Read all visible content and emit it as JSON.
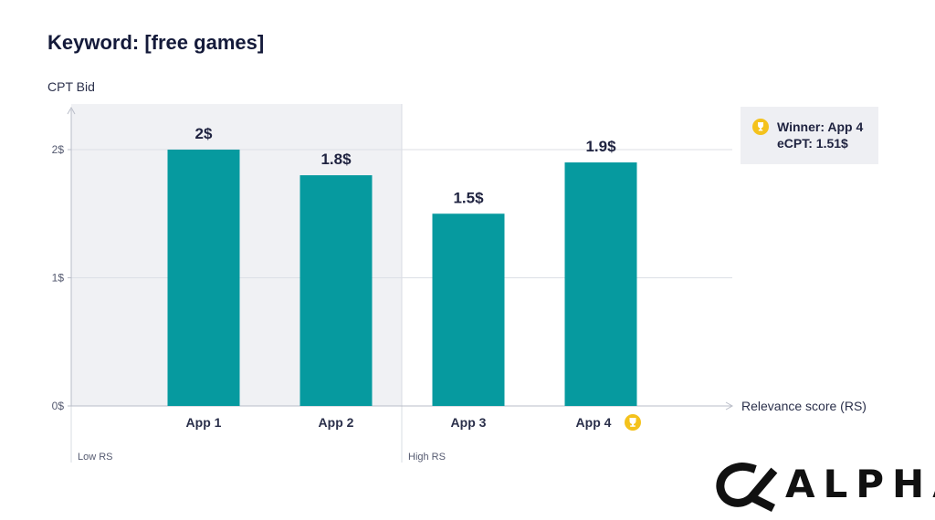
{
  "chart_data": {
    "type": "bar",
    "title": "Keyword: [free games]",
    "ylabel": "CPT Bid",
    "xlabel": "Relevance score (RS)",
    "categories": [
      "App 1",
      "App 2",
      "App 3",
      "App 4"
    ],
    "values": [
      2.0,
      1.8,
      1.5,
      1.9
    ],
    "value_labels": [
      "2$",
      "1.8$",
      "1.5$",
      "1.9$"
    ],
    "yticks": [
      {
        "value": 0,
        "label": "0$"
      },
      {
        "value": 1,
        "label": "1$"
      },
      {
        "value": 2,
        "label": "2$"
      }
    ],
    "ylim": [
      0,
      2.4
    ],
    "regions": [
      {
        "label": "Low RS",
        "shaded": true,
        "categories": [
          "App 1",
          "App 2"
        ]
      },
      {
        "label": "High RS",
        "shaded": false,
        "categories": [
          "App 3",
          "App 4"
        ]
      }
    ],
    "bar_color": "#069a9f",
    "winner_index": 3,
    "grid": true
  },
  "legend": {
    "line1": "Winner: App 4",
    "line2": "eCPT: 1.51$",
    "icon": "trophy-icon",
    "icon_color": "#f4c21c"
  },
  "logo": {
    "text": "ALPHA",
    "icon": "alpha-symbol-icon"
  }
}
